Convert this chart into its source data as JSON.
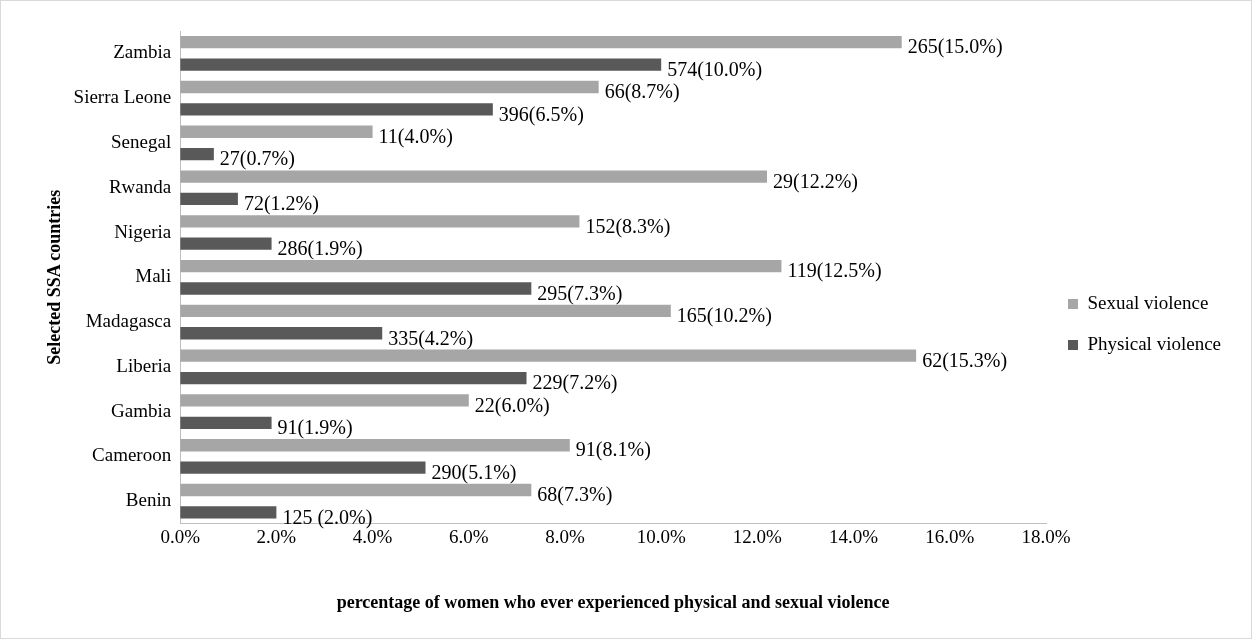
{
  "chart_data": {
    "type": "bar",
    "orientation": "horizontal",
    "xlabel": "percentage of women who ever experienced physical and sexual violence",
    "ylabel": "Selected SSA countries",
    "categories": [
      "Zambia",
      "Sierra Leone",
      "Senegal",
      "Rwanda",
      "Nigeria",
      "Mali",
      "Madagasca",
      "Liberia",
      "Gambia",
      "Cameroon",
      "Benin"
    ],
    "series": [
      {
        "name": "Sexual violence",
        "color": "#a6a6a6",
        "values": [
          15.0,
          8.7,
          4.0,
          12.2,
          8.3,
          12.5,
          10.2,
          15.3,
          6.0,
          8.1,
          7.3
        ],
        "value_labels": [
          "265(15.0%)",
          "66(8.7%)",
          "11(4.0%)",
          "29(12.2%)",
          "152(8.3%)",
          "119(12.5%)",
          "165(10.2%)",
          "62(15.3%)",
          "22(6.0%)",
          "91(8.1%)",
          "68(7.3%)"
        ]
      },
      {
        "name": "Physical violence",
        "color": "#595959",
        "values": [
          10.0,
          6.5,
          0.7,
          1.2,
          1.9,
          7.3,
          4.2,
          7.2,
          1.9,
          5.1,
          2.0
        ],
        "value_labels": [
          "574(10.0%)",
          "396(6.5%)",
          "27(0.7%)",
          "72(1.2%)",
          "286(1.9%)",
          "295(7.3%)",
          "335(4.2%)",
          "229(7.2%)",
          "91(1.9%)",
          "290(5.1%)",
          "125 (2.0%)"
        ]
      }
    ],
    "xlim": [
      0,
      18
    ],
    "xticks": [
      {
        "value": 0,
        "label": "0.0%"
      },
      {
        "value": 2,
        "label": "2.0%"
      },
      {
        "value": 4,
        "label": "4.0%"
      },
      {
        "value": 6,
        "label": "6.0%"
      },
      {
        "value": 8,
        "label": "8.0%"
      },
      {
        "value": 10,
        "label": "10.0%"
      },
      {
        "value": 12,
        "label": "12.0%"
      },
      {
        "value": 14,
        "label": "14.0%"
      },
      {
        "value": 16,
        "label": "16.0%"
      },
      {
        "value": 18,
        "label": "18.0%"
      }
    ],
    "grid": false,
    "legend": "right"
  }
}
